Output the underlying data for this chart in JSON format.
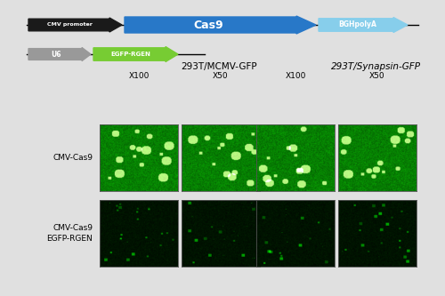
{
  "fig_bg": "#e0e0e0",
  "arrow1_labels": [
    "CMV promoter",
    "Cas9",
    "BGHpolyA"
  ],
  "arrow1_colors": [
    "#1a1a1a",
    "#2878c8",
    "#87ceeb"
  ],
  "arrow2_labels": [
    "U6",
    "EGFP-RGEN"
  ],
  "arrow2_colors": [
    "#999999",
    "#77cc33"
  ],
  "col_group_labels": [
    "293T/MCMV-GFP",
    "293T/Synapsin-GFP"
  ],
  "mag_labels": [
    "X100",
    "X50",
    "X100",
    "X50"
  ],
  "row_labels": [
    "CMV-Cas9",
    "CMV-Cas9\nEGFP-RGEN"
  ]
}
